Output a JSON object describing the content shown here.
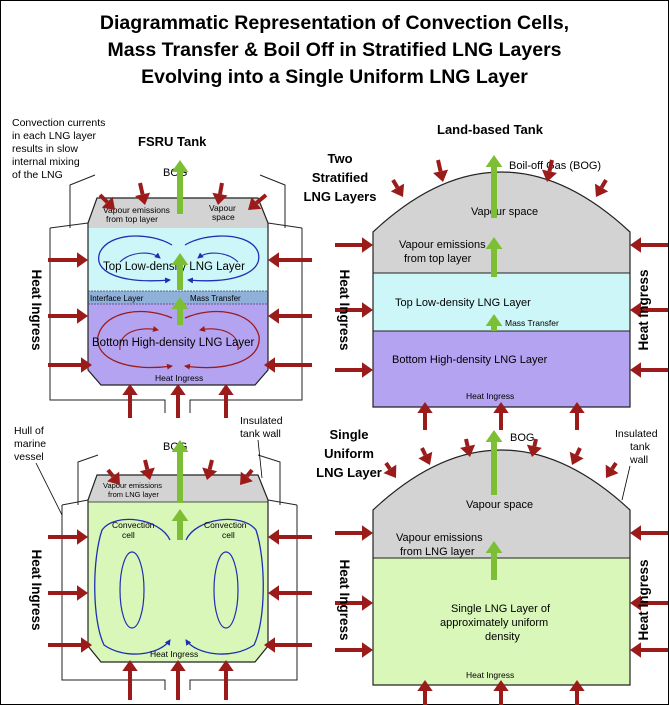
{
  "title": [
    "Diagrammatic Representation of Convection Cells,",
    "Mass Transfer & Boil Off in Stratified LNG Layers",
    "Evolving into a Single Uniform LNG Layer"
  ],
  "note": [
    "Convection currents",
    "in each LNG layer",
    "results in slow",
    "internal mixing",
    "of the LNG"
  ],
  "fsru_heading": "FSRU Tank",
  "land_heading": "Land-based Tank",
  "two_layers": [
    "Two",
    "Stratified",
    "LNG Layers"
  ],
  "single_layer": [
    "Single",
    "Uniform",
    "LNG Layer"
  ],
  "heat_ingress": "Heat Ingress",
  "hull_label": [
    "Hull of",
    "marine",
    "vessel"
  ],
  "insulated_left": [
    "Insulated",
    "tank wall"
  ],
  "insulated_right": [
    "Insulated",
    "tank",
    "wall"
  ],
  "fsru_top": {
    "bog": "BOG",
    "vapour_emissions": [
      "Vapour emissions",
      "from top layer"
    ],
    "vapour_space": [
      "Vapour",
      "space"
    ],
    "top_layer": "Top Low-density LNG Layer",
    "interface": "Interface Layer",
    "mass_transfer": "Mass Transfer",
    "bottom_layer": "Bottom High-density LNG Layer",
    "heat_ingress": "Heat Ingress"
  },
  "land_top": {
    "bog": "Boil-off Gas (BOG)",
    "vapour_space": "Vapour space",
    "vapour_emissions": [
      "Vapour emissions",
      "from top layer"
    ],
    "top_layer": "Top Low-density LNG Layer",
    "mass_transfer": "Mass Transfer",
    "bottom_layer": "Bottom High-density LNG Layer",
    "heat_ingress": "Heat Ingress"
  },
  "fsru_bottom": {
    "bog": "BOG",
    "vapour_emissions": [
      "Vapour emissions",
      "from LNG layer"
    ],
    "cell_left": [
      "Convection",
      "cell"
    ],
    "cell_right": [
      "Convection",
      "cell"
    ],
    "heat_ingress": "Heat Ingress"
  },
  "land_bottom": {
    "bog": "BOG",
    "vapour_space": "Vapour space",
    "vapour_emissions": [
      "Vapour emissions",
      "from LNG layer"
    ],
    "single_layer": [
      "Single LNG Layer of",
      "approximately uniform",
      "density"
    ],
    "heat_ingress": "Heat Ingress"
  },
  "colors": {
    "vapour": "#d3d3d3",
    "top_layer": "#cdf6f8",
    "bottom_layer": "#b3a3f0",
    "uniform_layer": "#d9f7b9",
    "heat_arrow": "#9b1b1b",
    "bog_arrow": "#7cbf34",
    "convection": "#1f2fb5",
    "bottom_convection": "#9b1b1b",
    "interface": "#8fb0d8"
  }
}
